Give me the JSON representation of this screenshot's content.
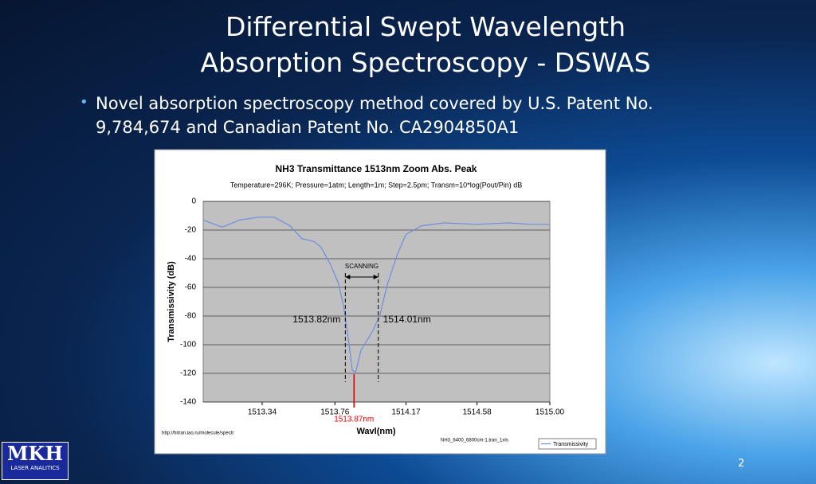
{
  "slide": {
    "title_lines": [
      "Differential Swept Wavelength",
      "Absorption Spectroscopy - DSWAS"
    ],
    "bullet_lines": [
      "Novel absorption spectroscopy method covered by U.S. Patent No.",
      "9,784,674 and Canadian Patent No. CA2904850A1"
    ],
    "logo": "MKH",
    "logo_subtitle": "LASER ANALITICS",
    "page_number": "2"
  },
  "chart_data": {
    "type": "line",
    "title": "NH3 Transmittance 1513nm Zoom Abs. Peak",
    "subtitle": "Temperature=296K; Pressure=1atm; Length=1m; Step=2.5pm; Transm=10*log(Pout/Pin)  dB",
    "x_label": "Wavl(nm)",
    "y_label": "Transmissivity (dB)",
    "source": "http://hitran.iao.ru/molecule/spectr",
    "file_note": "NH3_6400_6800cm-1.tran_1xls",
    "xlim": [
      1513,
      1515
    ],
    "xticks": [
      1513.34,
      1513.76,
      1514.17,
      1514.58,
      {
        "value": 1515,
        "label": "1515.00"
      }
    ],
    "ylim": [
      -140,
      0
    ],
    "yticks": [
      -140,
      -120,
      -100,
      -80,
      -60,
      -40,
      -20,
      0
    ],
    "grid": true,
    "legend": "bottom-right",
    "x": [
      1513.0,
      1513.11,
      1513.21,
      1513.32,
      1513.41,
      1513.5,
      1513.57,
      1513.64,
      1513.68,
      1513.73,
      1513.78,
      1513.81,
      1513.84,
      1513.86,
      1513.88,
      1513.91,
      1513.95,
      1513.98,
      1514.02,
      1514.06,
      1514.12,
      1514.17,
      1514.26,
      1514.39,
      1514.58,
      1514.76,
      1514.89,
      1515.0
    ],
    "series": [
      {
        "name": "Transmissivity",
        "color": "#6f8ce0",
        "values": [
          -13,
          -18,
          -13,
          -11,
          -11,
          -17,
          -26,
          -28,
          -32,
          -43,
          -57,
          -73,
          -98,
          -118,
          -119,
          -104,
          -96,
          -90,
          -79,
          -59,
          -37,
          -23,
          -17,
          -15,
          -16,
          -15,
          -16,
          -16
        ]
      }
    ],
    "scan_label": "SCANNING",
    "annotations": [
      {
        "x": 1513.82,
        "label": "1513.82nm",
        "style": "dashed",
        "color": "#000000"
      },
      {
        "x": 1514.01,
        "label": "1514.01nm",
        "style": "dashed",
        "color": "#000000"
      },
      {
        "x": 1513.87,
        "label": "1513.87nm",
        "style": "solid",
        "color": "#e00000"
      }
    ]
  }
}
